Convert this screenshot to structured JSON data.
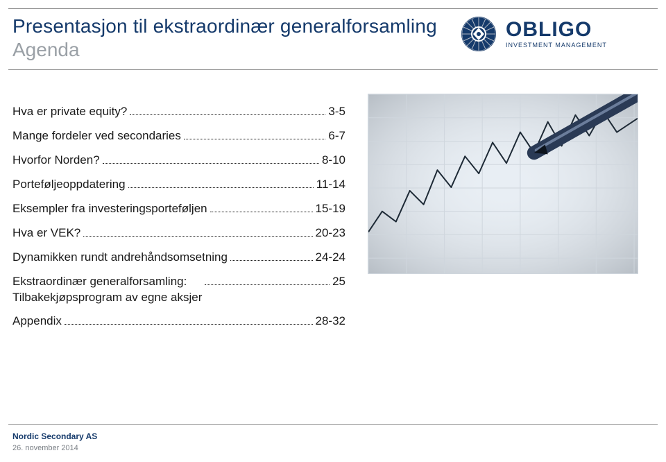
{
  "header": {
    "title": "Presentasjon til ekstraordinær generalforsamling",
    "subtitle": "Agenda"
  },
  "logo": {
    "word": "OBLIGO",
    "tagline": "INVESTMENT MANAGEMENT",
    "emblem_outer_color": "#153a6b",
    "emblem_inner_color": "#ffffff",
    "spoke_color": "#b0b7c2"
  },
  "colors": {
    "brand": "#153a6b",
    "subtitle_gray": "#9aa0a6",
    "rule_gray": "#8a8a8a",
    "text": "#1a1a1a",
    "footer_gray": "#7a7f85",
    "chart_bg": "#e8eef4",
    "chart_grid": "#cfd6dd",
    "chart_line": "#1e2a36",
    "pen_body": "#2a3a55",
    "pen_highlight": "#6b7d9b"
  },
  "agenda": {
    "label_fontsize": 17,
    "items": [
      {
        "label": "Hva er private equity?",
        "pages": "3-5"
      },
      {
        "label": "Mange fordeler ved secondaries",
        "pages": "6-7"
      },
      {
        "label": "Hvorfor Norden?",
        "pages": "8-10"
      },
      {
        "label": "Porteføljeoppdatering",
        "pages": "11-14"
      },
      {
        "label": "Eksempler fra investeringsporteføljen",
        "pages": "15-19"
      },
      {
        "label": "Hva er VEK?",
        "pages": "20-23"
      },
      {
        "label": "Dynamikken rundt andrehåndsomsetning",
        "pages": "24-24"
      },
      {
        "label": "Ekstraordinær generalforsamling:\nTilbakekjøpsprogram av egne aksjer",
        "pages": "25"
      },
      {
        "label": "Appendix",
        "pages": "28-32"
      }
    ]
  },
  "illustration": {
    "type": "line-chart-photo",
    "background_color": "#e8eef4",
    "grid_color": "#cfd6dd",
    "line_color": "#1e2a36",
    "line_width": 2,
    "grid": {
      "xmin": 0,
      "xmax": 390,
      "xstep": 55,
      "ymin": 0,
      "ymax": 260,
      "ystep": 34
    },
    "series": [
      [
        0,
        200
      ],
      [
        20,
        170
      ],
      [
        40,
        185
      ],
      [
        60,
        140
      ],
      [
        80,
        160
      ],
      [
        100,
        110
      ],
      [
        120,
        135
      ],
      [
        140,
        90
      ],
      [
        160,
        115
      ],
      [
        180,
        70
      ],
      [
        200,
        100
      ],
      [
        220,
        55
      ],
      [
        240,
        85
      ],
      [
        260,
        40
      ],
      [
        280,
        75
      ],
      [
        300,
        30
      ],
      [
        320,
        60
      ],
      [
        340,
        25
      ],
      [
        360,
        55
      ],
      [
        390,
        35
      ]
    ],
    "pen": {
      "tip": [
        240,
        85
      ],
      "end": [
        390,
        0
      ],
      "body_color": "#2a3a55",
      "highlight_color": "#6b7d9b",
      "width": 20
    }
  },
  "footer": {
    "company": "Nordic Secondary AS",
    "date": "26. november 2014"
  }
}
